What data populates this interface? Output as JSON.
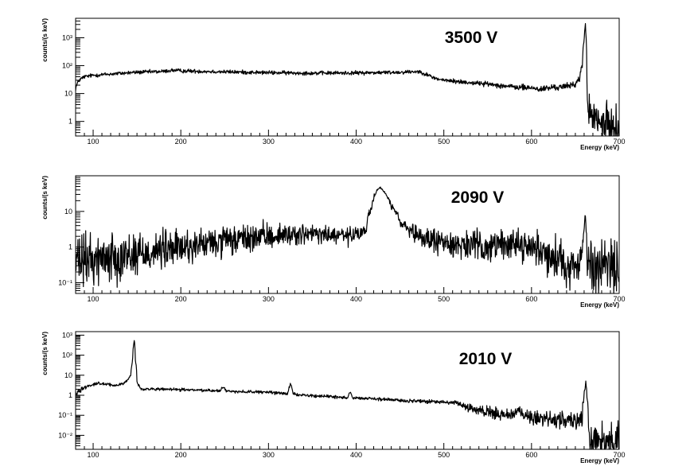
{
  "chart_data": [
    {
      "type": "line",
      "title": "3500 V",
      "xlabel": "Energy (keV)",
      "ylabel": "counts/(s keV)",
      "xlim": [
        80,
        700
      ],
      "ylim": [
        0.3,
        5000
      ],
      "y_scale": "log",
      "x_ticks": [
        100,
        200,
        300,
        400,
        500,
        600,
        700
      ],
      "y_ticks": [
        {
          "value": 1,
          "label": "1"
        },
        {
          "value": 10,
          "label": "10"
        },
        {
          "value": 100,
          "label": "10²"
        },
        {
          "value": 1000,
          "label": "10³"
        }
      ],
      "series": [
        {
          "x": [
            80,
            84,
            90,
            100,
            120,
            150,
            180,
            190,
            200,
            250,
            300,
            350,
            400,
            450,
            470,
            475,
            480,
            490,
            500,
            520,
            550,
            580,
            600,
            610,
            620,
            640,
            650,
            655,
            658,
            660,
            661.5,
            662,
            663,
            664,
            666,
            670,
            680,
            690,
            700
          ],
          "y": [
            15,
            30,
            40,
            45,
            50,
            58,
            62,
            68,
            65,
            60,
            56,
            54,
            55,
            58,
            62,
            58,
            48,
            35,
            30,
            26,
            22,
            17,
            16,
            14,
            16,
            18,
            22,
            35,
            100,
            800,
            3000,
            1500,
            30,
            3,
            2,
            1.2,
            0.8,
            0.7,
            0.6
          ],
          "noise": [
            0.06,
            0.06,
            0.05,
            0.05,
            0.05,
            0.05,
            0.05,
            0.05,
            0.05,
            0.05,
            0.05,
            0.05,
            0.05,
            0.05,
            0.05,
            0.05,
            0.05,
            0.05,
            0.05,
            0.06,
            0.06,
            0.07,
            0.08,
            0.08,
            0.08,
            0.08,
            0.08,
            0.08,
            0.08,
            0.05,
            0.05,
            0.05,
            0.05,
            0.3,
            0.45,
            0.5,
            0.5,
            0.5,
            0.5
          ]
        }
      ]
    },
    {
      "type": "line",
      "title": "2090 V",
      "xlabel": "Energy (keV)",
      "ylabel": "counts/(s keV)",
      "xlim": [
        80,
        700
      ],
      "ylim": [
        0.05,
        100
      ],
      "y_scale": "log",
      "x_ticks": [
        100,
        200,
        300,
        400,
        500,
        600,
        700
      ],
      "y_ticks": [
        {
          "value": 0.1,
          "label": "10⁻¹"
        },
        {
          "value": 1,
          "label": "1"
        },
        {
          "value": 10,
          "label": "10"
        }
      ],
      "series": [
        {
          "x": [
            80,
            100,
            150,
            200,
            250,
            300,
            330,
            360,
            390,
            405,
            412,
            418,
            424,
            428,
            432,
            440,
            450,
            460,
            470,
            480,
            500,
            550,
            580,
            600,
            620,
            640,
            655,
            658,
            660,
            661.5,
            662,
            663,
            664,
            670,
            700
          ],
          "y": [
            0.35,
            0.45,
            0.65,
            0.95,
            1.4,
            2.0,
            2.3,
            2.2,
            2.0,
            2.2,
            3.5,
            14,
            42,
            45,
            35,
            14,
            5,
            2.6,
            2.0,
            1.7,
            1.3,
            1.0,
            1.3,
            1.0,
            0.6,
            0.35,
            0.25,
            0.8,
            3,
            8,
            4,
            0.6,
            0.3,
            0.3,
            0.25
          ],
          "noise": [
            0.55,
            0.5,
            0.45,
            0.35,
            0.3,
            0.25,
            0.2,
            0.2,
            0.2,
            0.15,
            0.1,
            0.05,
            0.03,
            0.03,
            0.03,
            0.05,
            0.1,
            0.15,
            0.2,
            0.22,
            0.25,
            0.3,
            0.3,
            0.3,
            0.35,
            0.45,
            0.45,
            0.2,
            0.1,
            0.05,
            0.05,
            0.4,
            0.55,
            0.6,
            0.6
          ]
        }
      ]
    },
    {
      "type": "line",
      "title": "2010 V",
      "xlabel": "Energy (keV)",
      "ylabel": "counts/(s keV)",
      "xlim": [
        80,
        700
      ],
      "ylim": [
        0.002,
        1500
      ],
      "y_scale": "log",
      "x_ticks": [
        100,
        200,
        300,
        400,
        500,
        600,
        700
      ],
      "y_ticks": [
        {
          "value": 0.01,
          "label": "10⁻²"
        },
        {
          "value": 0.1,
          "label": "10⁻¹"
        },
        {
          "value": 1,
          "label": "1"
        },
        {
          "value": 10,
          "label": "10"
        },
        {
          "value": 100,
          "label": "10²"
        },
        {
          "value": 1000,
          "label": "10³"
        }
      ],
      "series": [
        {
          "x": [
            80,
            95,
            105,
            115,
            125,
            135,
            140,
            143,
            145,
            146,
            147,
            148,
            150,
            155,
            170,
            200,
            245,
            248,
            252,
            300,
            322,
            325,
            328,
            340,
            390,
            393,
            396,
            450,
            500,
            515,
            530,
            560,
            580,
            585,
            590,
            600,
            640,
            658,
            661,
            662,
            663,
            665,
            670,
            700
          ],
          "y": [
            1.2,
            3,
            4,
            3.5,
            3,
            4,
            6,
            10,
            50,
            300,
            600,
            60,
            4,
            2,
            2.0,
            1.9,
            1.7,
            2.5,
            1.6,
            1.4,
            1.2,
            3.5,
            1.2,
            1.0,
            0.75,
            1.5,
            0.75,
            0.55,
            0.45,
            0.4,
            0.2,
            0.12,
            0.1,
            0.2,
            0.1,
            0.08,
            0.05,
            0.08,
            2,
            5,
            1,
            0.01,
            0.005,
            0.005
          ],
          "noise": [
            0.1,
            0.05,
            0.05,
            0.05,
            0.05,
            0.05,
            0.05,
            0.05,
            0.03,
            0.03,
            0.03,
            0.03,
            0.05,
            0.05,
            0.05,
            0.05,
            0.05,
            0.05,
            0.05,
            0.05,
            0.05,
            0.05,
            0.05,
            0.05,
            0.05,
            0.05,
            0.05,
            0.06,
            0.06,
            0.08,
            0.15,
            0.2,
            0.2,
            0.15,
            0.2,
            0.25,
            0.3,
            0.3,
            0.1,
            0.05,
            0.1,
            0.6,
            0.7,
            0.7
          ]
        }
      ]
    }
  ]
}
